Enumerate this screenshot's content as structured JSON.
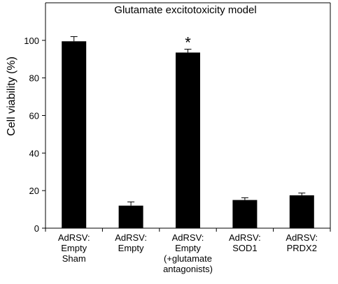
{
  "chart_data": {
    "type": "bar",
    "title": "Glutamate excitotoxicity model",
    "xlabel": "",
    "ylabel": "Cell viability (%)",
    "ylim": [
      0,
      120
    ],
    "yticks": [
      0,
      20,
      40,
      60,
      80,
      100
    ],
    "grid": false,
    "categories": [
      [
        "AdRSV:",
        "Empty",
        "Sham"
      ],
      [
        "AdRSV:",
        "Empty"
      ],
      [
        "AdRSV:",
        "Empty",
        "(+glutamate",
        "antagonists)"
      ],
      [
        "AdRSV:",
        "SOD1"
      ],
      [
        "AdRSV:",
        "PRDX2"
      ]
    ],
    "series": [
      {
        "values": [
          99.5,
          12,
          93.5,
          15,
          17.5
        ],
        "errors": [
          2.5,
          2,
          1.8,
          1.2,
          1.2
        ]
      }
    ],
    "annotations": [
      {
        "category_index": 2,
        "text": "*"
      }
    ],
    "colors": {
      "bar": "#000000",
      "axis": "#000000"
    }
  }
}
